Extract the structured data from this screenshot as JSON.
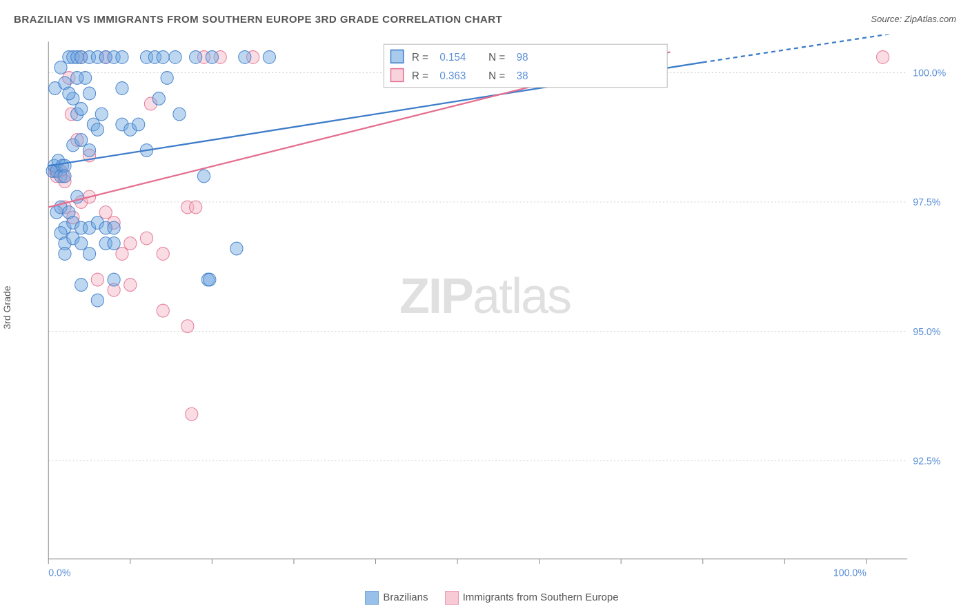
{
  "title": "BRAZILIAN VS IMMIGRANTS FROM SOUTHERN EUROPE 3RD GRADE CORRELATION CHART",
  "source": "Source: ZipAtlas.com",
  "ylabel": "3rd Grade",
  "watermark_zip": "ZIP",
  "watermark_atlas": "atlas",
  "chart": {
    "type": "scatter",
    "background_color": "#ffffff",
    "plot_border_color": "#888888",
    "grid_color": "#d0d0d0",
    "grid_dash": "2,3",
    "xlim": [
      0,
      105
    ],
    "ylim": [
      90.6,
      100.6
    ],
    "x_ticks": [
      0,
      10,
      20,
      30,
      40,
      50,
      60,
      70,
      80,
      90,
      100
    ],
    "x_tick_labels": {
      "0": "0.0%",
      "100": "100.0%"
    },
    "y_ticks": [
      92.5,
      95.0,
      97.5,
      100.0
    ],
    "y_tick_labels": {
      "92.5": "92.5%",
      "95.0": "95.0%",
      "97.5": "97.5%",
      "100.0": "100.0%"
    },
    "tick_label_color": "#5a8fd6",
    "tick_label_fontsize": 14,
    "marker_radius": 9,
    "marker_opacity": 0.45,
    "marker_stroke_opacity": 0.9,
    "line_width": 2.2,
    "series": [
      {
        "name": "Brazilians",
        "color": "#6ea6e0",
        "stroke": "#3d7cc9",
        "R": "0.154",
        "N": "98",
        "trend": {
          "x1": 0,
          "y1": 98.2,
          "x2": 80,
          "y2": 100.2,
          "dashed_after_x": 80,
          "x3": 105,
          "y3": 100.8
        },
        "points": [
          [
            0.5,
            98.1
          ],
          [
            0.7,
            98.2
          ],
          [
            1.0,
            98.1
          ],
          [
            1.2,
            98.3
          ],
          [
            1.5,
            98.0
          ],
          [
            1.7,
            98.2
          ],
          [
            2.0,
            98.2
          ],
          [
            2.0,
            98.0
          ],
          [
            0.8,
            99.7
          ],
          [
            1.5,
            100.1
          ],
          [
            2.5,
            100.3
          ],
          [
            3.0,
            100.3
          ],
          [
            3.5,
            100.3
          ],
          [
            4.0,
            100.3
          ],
          [
            5.0,
            100.3
          ],
          [
            6.0,
            100.3
          ],
          [
            7.0,
            100.3
          ],
          [
            8.0,
            100.3
          ],
          [
            9.0,
            100.3
          ],
          [
            12.0,
            100.3
          ],
          [
            13.0,
            100.3
          ],
          [
            14.0,
            100.3
          ],
          [
            15.5,
            100.3
          ],
          [
            18.0,
            100.3
          ],
          [
            20.0,
            100.3
          ],
          [
            24.0,
            100.3
          ],
          [
            27.0,
            100.3
          ],
          [
            66.0,
            100.3
          ],
          [
            2.0,
            99.8
          ],
          [
            3.0,
            99.5
          ],
          [
            3.5,
            99.2
          ],
          [
            4.0,
            99.3
          ],
          [
            4.5,
            99.9
          ],
          [
            5.0,
            99.6
          ],
          [
            5.5,
            99.0
          ],
          [
            1.0,
            97.3
          ],
          [
            1.5,
            97.4
          ],
          [
            2.0,
            97.0
          ],
          [
            2.5,
            97.3
          ],
          [
            3.0,
            97.1
          ],
          [
            3.5,
            97.6
          ],
          [
            4.0,
            97.0
          ],
          [
            1.5,
            96.9
          ],
          [
            2.0,
            96.7
          ],
          [
            3.0,
            96.8
          ],
          [
            5.0,
            97.0
          ],
          [
            6.0,
            97.1
          ],
          [
            7.0,
            97.0
          ],
          [
            8.0,
            97.0
          ],
          [
            2.0,
            96.5
          ],
          [
            4.0,
            96.7
          ],
          [
            5.0,
            96.5
          ],
          [
            7.0,
            96.7
          ],
          [
            8.0,
            96.7
          ],
          [
            3.0,
            98.6
          ],
          [
            4.0,
            98.7
          ],
          [
            5.0,
            98.5
          ],
          [
            6.0,
            98.9
          ],
          [
            9.0,
            99.0
          ],
          [
            10.0,
            98.9
          ],
          [
            11.0,
            99.0
          ],
          [
            12.0,
            98.5
          ],
          [
            2.5,
            99.6
          ],
          [
            3.5,
            99.9
          ],
          [
            6.5,
            99.2
          ],
          [
            13.5,
            99.5
          ],
          [
            14.5,
            99.9
          ],
          [
            19.0,
            98.0
          ],
          [
            19.5,
            96.0
          ],
          [
            19.7,
            96.0
          ],
          [
            23.0,
            96.6
          ],
          [
            4.0,
            95.9
          ],
          [
            6.0,
            95.6
          ],
          [
            8.0,
            96.0
          ],
          [
            9.0,
            99.7
          ],
          [
            16.0,
            99.2
          ]
        ]
      },
      {
        "name": "Immigrants from Southern Europe",
        "color": "#f4b4c4",
        "stroke": "#e36f90",
        "R": "0.363",
        "N": "38",
        "trend": {
          "x1": 0,
          "y1": 97.4,
          "x2": 76,
          "y2": 100.4,
          "dashed_after_x": null
        },
        "points": [
          [
            0.8,
            98.1
          ],
          [
            1.0,
            98.0
          ],
          [
            1.3,
            98.1
          ],
          [
            1.5,
            98.1
          ],
          [
            1.8,
            98.0
          ],
          [
            2.0,
            97.9
          ],
          [
            2.5,
            99.9
          ],
          [
            4.0,
            100.3
          ],
          [
            7.0,
            100.3
          ],
          [
            19.0,
            100.3
          ],
          [
            21.0,
            100.3
          ],
          [
            25.0,
            100.3
          ],
          [
            102.0,
            100.3
          ],
          [
            2.0,
            97.4
          ],
          [
            3.0,
            97.2
          ],
          [
            4.0,
            97.5
          ],
          [
            5.0,
            97.6
          ],
          [
            7.0,
            97.3
          ],
          [
            8.0,
            97.1
          ],
          [
            9.0,
            96.5
          ],
          [
            10.0,
            96.7
          ],
          [
            12.0,
            96.8
          ],
          [
            14.0,
            96.5
          ],
          [
            17.0,
            97.4
          ],
          [
            18.0,
            97.4
          ],
          [
            10.0,
            95.9
          ],
          [
            14.0,
            95.4
          ],
          [
            17.0,
            95.1
          ],
          [
            6.0,
            96.0
          ],
          [
            8.0,
            95.8
          ],
          [
            17.5,
            93.4
          ],
          [
            2.8,
            99.2
          ],
          [
            3.5,
            98.7
          ],
          [
            5.0,
            98.4
          ],
          [
            12.5,
            99.4
          ]
        ]
      }
    ],
    "rn_legend": {
      "x": 41,
      "width_pct": 33,
      "y_top": 100.55,
      "label_color": "#555555",
      "value_color": "#5a8fd6",
      "border_color": "#bbbbbb"
    },
    "bottom_legend": {
      "fontsize": 15,
      "text_color": "#555555"
    }
  }
}
